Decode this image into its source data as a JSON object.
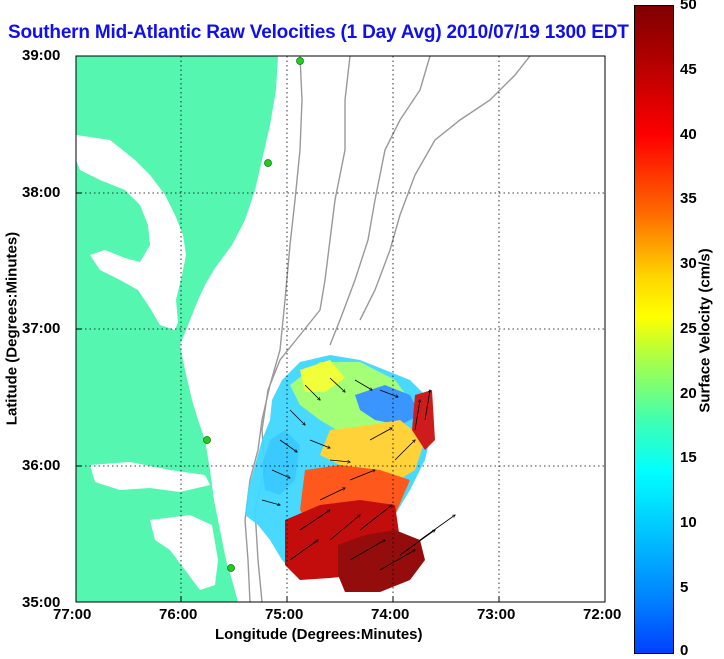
{
  "title": "Southern Mid-Atlantic Raw Velocities (1 Day Avg) 2010/07/19 1300 EDT",
  "axes": {
    "xlabel": "Longitude (Degrees:Minutes)",
    "ylabel": "Latitude (Degrees:Minutes)",
    "xticks": [
      "77:00",
      "76:00",
      "75:00",
      "74:00",
      "73:00",
      "72:00"
    ],
    "yticks": [
      "39:00",
      "38:00",
      "37:00",
      "36:00",
      "35:00"
    ]
  },
  "colorbar": {
    "label": "Surface Velocity (cm/s)",
    "ticks": [
      "50",
      "45",
      "40",
      "35",
      "30",
      "25",
      "20",
      "15",
      "10",
      "5",
      "0"
    ],
    "range": [
      0,
      50
    ]
  },
  "colors": {
    "land": "#55f7b0",
    "title": "#1010ee",
    "contour": "#999999",
    "station": "#22cc22"
  }
}
